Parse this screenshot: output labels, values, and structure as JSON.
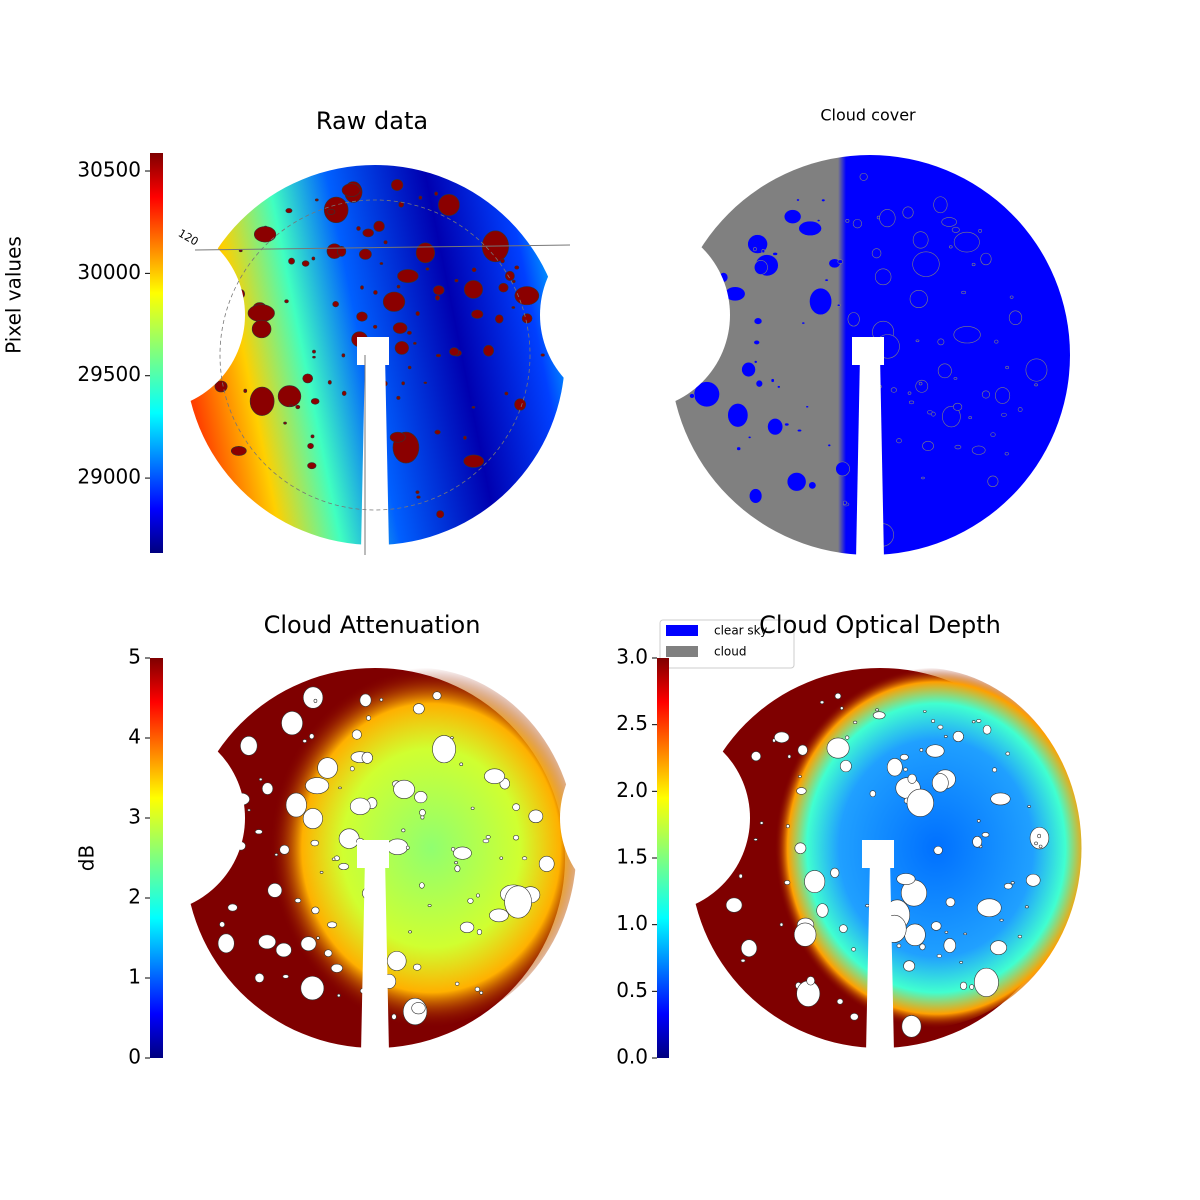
{
  "chart_data": [
    {
      "type": "image",
      "title": "Raw data",
      "colorbar_label": "Pixel values",
      "colormap": "jet",
      "ylim": [
        28634,
        30588
      ],
      "yticks": [
        29000,
        29500,
        30000,
        30500
      ],
      "polar_labels": [
        "120"
      ]
    },
    {
      "type": "image",
      "title": "Cloud cover",
      "series": [
        {
          "name": "clear sky",
          "color": "#0000ff"
        },
        {
          "name": "cloud",
          "color": "#808080"
        }
      ]
    },
    {
      "type": "image",
      "title": "Cloud Attenuation",
      "colorbar_label": "dB",
      "colormap": "jet",
      "ylim": [
        0,
        5
      ],
      "yticks": [
        0,
        1,
        2,
        3,
        4,
        5
      ]
    },
    {
      "type": "image",
      "title": "Cloud Optical Depth",
      "colormap": "jet",
      "ylim": [
        0,
        3
      ],
      "yticks": [
        {
          "value": 0,
          "label": "0.0"
        },
        0.5,
        {
          "value": 1,
          "label": "1.0"
        },
        1.5,
        {
          "value": 2,
          "label": "2.0"
        },
        2.5,
        {
          "value": 3,
          "label": "3.0"
        }
      ]
    }
  ]
}
